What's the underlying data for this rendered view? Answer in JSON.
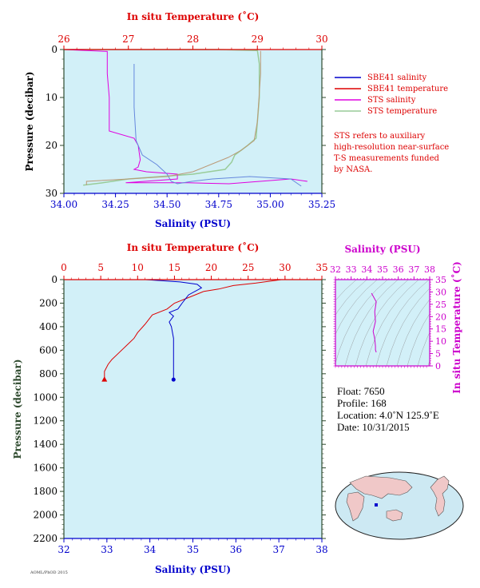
{
  "colors": {
    "plot_bg": "#d2f0f8",
    "temperature": "#dd0000",
    "salinity": "#0000cc",
    "sts_salinity": "#e000e0",
    "sts_temperature": "#99cc99",
    "pressure_axis": "#2e4a2e",
    "magenta_axis": "#cc00cc"
  },
  "chart_data": [
    {
      "type": "line",
      "panel": "near-surface",
      "top_axis_label": "In situ Temperature (˚C)",
      "top_ticks": [
        "26",
        "27",
        "28",
        "29",
        "30"
      ],
      "top_range": [
        26,
        30
      ],
      "bottom_axis_label": "Salinity (PSU)",
      "bottom_ticks": [
        "34.00",
        "34.25",
        "34.50",
        "34.75",
        "35.00",
        "35.25"
      ],
      "bottom_range": [
        34.0,
        35.25
      ],
      "ylabel": "Pressure (decibar)",
      "y_ticks": [
        "0",
        "10",
        "20",
        "30"
      ],
      "y_range": [
        0,
        30
      ],
      "legend": [
        {
          "label": "SBE41 salinity",
          "color": "#0000cc"
        },
        {
          "label": "SBE41 temperature",
          "color": "#dd0000"
        },
        {
          "label": "STS salinity",
          "color": "#e000e0"
        },
        {
          "label": "STS temperature",
          "color": "#99cc99"
        }
      ],
      "note": [
        "STS refers to auxiliary",
        "high-resolution near-surface",
        "T-S measurements funded",
        "by NASA."
      ],
      "series": [
        {
          "name": "SBE41 salinity",
          "axis": "salinity",
          "x": [
            34.34,
            34.34,
            34.35,
            34.38,
            34.45,
            34.5,
            34.52,
            34.55,
            34.62,
            34.72,
            34.9,
            35.1,
            35.15
          ],
          "y": [
            3.0,
            12,
            19,
            22,
            24,
            26,
            27.5,
            28,
            27.5,
            27,
            26.5,
            27,
            28.5
          ]
        },
        {
          "name": "SBE41 temperature",
          "axis": "temperature",
          "x": [
            29.05,
            29.05,
            29.0,
            28.95,
            28.75,
            28.55,
            28.0,
            27.6,
            27.0,
            26.35,
            26.35
          ],
          "y": [
            0.3,
            5,
            15,
            19,
            21,
            22.5,
            25.5,
            26.5,
            27,
            27.5,
            28.3
          ]
        },
        {
          "name": "STS salinity",
          "axis": "salinity",
          "x": [
            34.0,
            34.21,
            34.21,
            34.22,
            34.22,
            34.34,
            34.36,
            34.37,
            34.36,
            34.34,
            34.4,
            34.55,
            34.55,
            34.3,
            34.6,
            34.8,
            35.1,
            35.18
          ],
          "y": [
            0,
            0.4,
            5,
            10,
            17,
            18.5,
            20,
            23,
            24.5,
            25,
            25.5,
            26,
            27,
            27.8,
            27.8,
            28,
            27,
            27.5
          ]
        },
        {
          "name": "STS temperature",
          "axis": "temperature",
          "x": [
            26.0,
            28.4,
            29.0,
            29.03,
            29.03,
            29.0,
            28.98,
            28.85,
            28.75,
            28.65,
            28.6,
            28.5,
            28.0,
            27.5,
            27.0,
            26.6,
            26.3
          ],
          "y": [
            0,
            0,
            0.2,
            3,
            10,
            15,
            18.5,
            20,
            21,
            22,
            23.5,
            25,
            26,
            26.5,
            27,
            27.8,
            28.3
          ]
        }
      ]
    },
    {
      "type": "line",
      "panel": "full-profile",
      "top_axis_label": "In situ Temperature (˚C)",
      "top_ticks": [
        "0",
        "5",
        "10",
        "15",
        "20",
        "25",
        "30",
        "35"
      ],
      "top_range": [
        0,
        35
      ],
      "bottom_axis_label": "Salinity (PSU)",
      "bottom_ticks": [
        "32",
        "33",
        "34",
        "35",
        "36",
        "37",
        "38"
      ],
      "bottom_range": [
        32,
        38
      ],
      "ylabel": "Pressure (decibar)",
      "y_ticks": [
        "0",
        "200",
        "400",
        "600",
        "800",
        "1000",
        "1200",
        "1400",
        "1600",
        "1800",
        "2000",
        "2200"
      ],
      "y_range": [
        0,
        2200
      ],
      "series": [
        {
          "name": "Temperature",
          "axis": "temperature",
          "x": [
            29.5,
            26,
            23,
            21,
            19,
            17,
            15,
            14,
            12,
            11,
            10,
            9.5,
            8.5,
            7.5,
            6.5,
            6.0,
            5.5,
            5.5
          ],
          "y": [
            0,
            30,
            50,
            80,
            100,
            150,
            200,
            250,
            300,
            380,
            450,
            500,
            560,
            620,
            680,
            720,
            780,
            850
          ]
        },
        {
          "name": "Salinity",
          "axis": "salinity",
          "x": [
            33.9,
            34.7,
            35.1,
            35.2,
            34.9,
            34.75,
            34.65,
            34.45,
            34.55,
            34.45,
            34.5,
            34.55,
            34.55,
            34.55
          ],
          "y": [
            0,
            20,
            40,
            70,
            130,
            200,
            250,
            280,
            310,
            360,
            400,
            500,
            700,
            850
          ]
        }
      ]
    },
    {
      "type": "line",
      "panel": "t-s-diagram",
      "top_axis_label": "Salinity (PSU)",
      "top_ticks": [
        "32",
        "33",
        "34",
        "35",
        "36",
        "37",
        "38"
      ],
      "top_range": [
        32,
        38
      ],
      "right_axis_label": "In situ Temperature (˚C)",
      "right_ticks": [
        "0",
        "5",
        "10",
        "15",
        "20",
        "25",
        "30",
        "35"
      ],
      "right_range": [
        0,
        35
      ],
      "series": [
        {
          "name": "T-S",
          "x": [
            34.3,
            34.6,
            34.5,
            34.55,
            34.4,
            34.5,
            34.55,
            34.55,
            34.6
          ],
          "y": [
            29.5,
            26,
            22,
            18,
            14,
            11,
            8,
            6.5,
            5.5
          ]
        }
      ]
    }
  ],
  "info": {
    "float": "Float:  7650",
    "profile": "Profile:  168",
    "location": "Location:  4.0˚N  125.9˚E",
    "date": "Date:  10/31/2015"
  }
}
